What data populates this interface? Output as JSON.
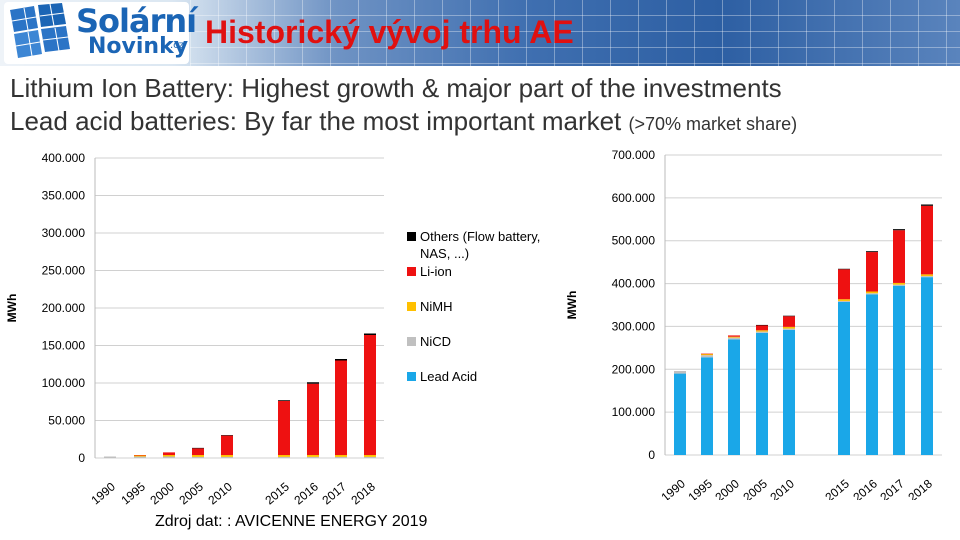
{
  "header": {
    "logo_line1": "Solární",
    "logo_line2": "Novinky",
    "logo_suffix": ".cz",
    "title": "Historický vývoj trhu AE"
  },
  "subtitle": {
    "line1": "Lithium Ion Battery: Highest growth & major part of the investments",
    "line2_main": "Lead acid batteries: By far the most important market",
    "line2_note": "(>70% market share)"
  },
  "legend": [
    {
      "label": "Others (Flow battery,",
      "label2": "NAS, ...)",
      "color": "#000000"
    },
    {
      "label": "Li-ion",
      "color": "#ee1111"
    },
    {
      "label": "NiMH",
      "color": "#ffc000"
    },
    {
      "label": "NiCD",
      "color": "#c0c0c0"
    },
    {
      "label": "Lead Acid",
      "color": "#1aa7e8"
    }
  ],
  "chart_data": [
    {
      "type": "bar",
      "stacked": true,
      "ylabel": "MWh",
      "ylim": [
        0,
        400000
      ],
      "yticks": [
        "0",
        "50.000",
        "100.000",
        "150.000",
        "200.000",
        "250.000",
        "300.000",
        "350.000",
        "400.000"
      ],
      "categories": [
        "1990",
        "1995",
        "2000",
        "2005",
        "2010",
        "2015",
        "2016",
        "2017",
        "2018"
      ],
      "series": [
        {
          "name": "NiCD",
          "color": "#c0c0c0",
          "values": [
            2000,
            2000,
            2000,
            1500,
            1500,
            1500,
            1500,
            1500,
            1500
          ]
        },
        {
          "name": "NiMH",
          "color": "#ffc000",
          "values": [
            0,
            1500,
            2000,
            2500,
            2500,
            2500,
            2500,
            2500,
            2500
          ]
        },
        {
          "name": "Li-ion",
          "color": "#ee1111",
          "values": [
            0,
            500,
            3500,
            9000,
            26000,
            72000,
            95000,
            126000,
            160000
          ]
        },
        {
          "name": "Others",
          "color": "#000000",
          "values": [
            0,
            0,
            0,
            500,
            500,
            1000,
            2000,
            2000,
            2000
          ]
        }
      ]
    },
    {
      "type": "bar",
      "stacked": true,
      "ylabel": "MWh",
      "ylim": [
        0,
        700000
      ],
      "yticks": [
        "0",
        "100.000",
        "200.000",
        "300.000",
        "400.000",
        "500.000",
        "600.000",
        "700.000"
      ],
      "categories": [
        "1990",
        "1995",
        "2000",
        "2005",
        "2010",
        "2015",
        "2016",
        "2017",
        "2018"
      ],
      "series": [
        {
          "name": "Lead Acid",
          "color": "#1aa7e8",
          "values": [
            190000,
            228000,
            270000,
            285000,
            292000,
            357000,
            375000,
            395000,
            415000
          ]
        },
        {
          "name": "NiCD",
          "color": "#c0c0c0",
          "values": [
            6000,
            5000,
            4000,
            3000,
            3000,
            2500,
            2500,
            2500,
            2500
          ]
        },
        {
          "name": "NiMH",
          "color": "#ffc000",
          "values": [
            0,
            3000,
            2000,
            3000,
            4000,
            4000,
            4000,
            4000,
            4000
          ]
        },
        {
          "name": "Li-ion",
          "color": "#ee1111",
          "values": [
            0,
            500,
            3000,
            12000,
            25000,
            70000,
            92000,
            123000,
            160000
          ]
        },
        {
          "name": "Others",
          "color": "#000000",
          "values": [
            0,
            0,
            0,
            500,
            1000,
            1000,
            2000,
            2500,
            3000
          ]
        }
      ]
    }
  ],
  "source": "Zdroj dat: : AVICENNE ENERGY 2019"
}
